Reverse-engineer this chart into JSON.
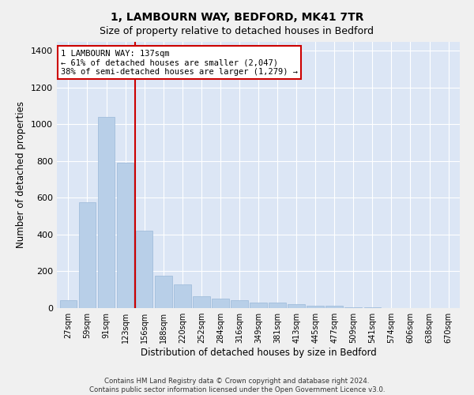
{
  "title": "1, LAMBOURN WAY, BEDFORD, MK41 7TR",
  "subtitle": "Size of property relative to detached houses in Bedford",
  "xlabel": "Distribution of detached houses by size in Bedford",
  "ylabel": "Number of detached properties",
  "categories": [
    "27sqm",
    "59sqm",
    "91sqm",
    "123sqm",
    "156sqm",
    "188sqm",
    "220sqm",
    "252sqm",
    "284sqm",
    "316sqm",
    "349sqm",
    "381sqm",
    "413sqm",
    "445sqm",
    "477sqm",
    "509sqm",
    "541sqm",
    "574sqm",
    "606sqm",
    "638sqm",
    "670sqm"
  ],
  "values": [
    45,
    575,
    1040,
    790,
    420,
    178,
    130,
    65,
    50,
    45,
    28,
    28,
    20,
    15,
    12,
    5,
    3,
    2,
    1,
    1,
    0
  ],
  "bar_color": "#b8cfe8",
  "bar_edge_color": "#9ab8d8",
  "marker_label": "1 LAMBOURN WAY: 137sqm",
  "annotation_line1": "← 61% of detached houses are smaller (2,047)",
  "annotation_line2": "38% of semi-detached houses are larger (1,279) →",
  "marker_color": "#cc0000",
  "ylim": [
    0,
    1450
  ],
  "yticks": [
    0,
    200,
    400,
    600,
    800,
    1000,
    1200,
    1400
  ],
  "footnote1": "Contains HM Land Registry data © Crown copyright and database right 2024.",
  "footnote2": "Contains public sector information licensed under the Open Government Licence v3.0.",
  "fig_bg_color": "#f0f0f0",
  "plot_bg_color": "#dce6f5",
  "grid_color": "#ffffff",
  "title_fontsize": 10,
  "axis_label_fontsize": 8.5
}
